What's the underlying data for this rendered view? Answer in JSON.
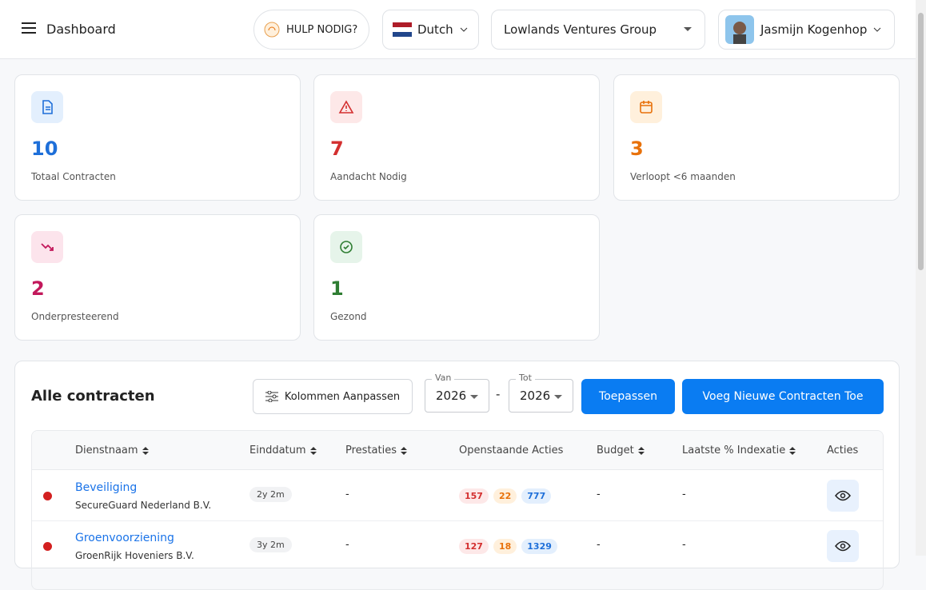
{
  "header": {
    "menu_title": "Dashboard",
    "help": "HULP NODIG?",
    "language": "Dutch",
    "company": "Lowlands Ventures Group",
    "user": "Jasmijn Kogenhop"
  },
  "stats": [
    {
      "value": "10",
      "label": "Totaal Contracten"
    },
    {
      "value": "7",
      "label": "Aandacht Nodig"
    },
    {
      "value": "3",
      "label": "Verloopt <6 maanden"
    },
    {
      "value": "2",
      "label": "Onderpresteerend"
    },
    {
      "value": "1",
      "label": "Gezond"
    }
  ],
  "contracts": {
    "title": "Alle contracten",
    "columns_button": "Kolommen Aanpassen",
    "from_label": "Van",
    "from_value": "2026",
    "separator": "-",
    "to_label": "Tot",
    "to_value": "2026",
    "apply": "Toepassen",
    "add": "Voeg Nieuwe Contracten Toe",
    "columns": [
      "Dienstnaam",
      "Einddatum",
      "Prestaties",
      "Openstaande Acties",
      "Budget",
      "Laatste % Indexatie",
      "Acties"
    ],
    "rows": [
      {
        "name": "Beveiliging",
        "supplier": "SecureGuard Nederland B.V.",
        "end": "2y 2m",
        "performance": "-",
        "actions": [
          "157",
          "22",
          "777"
        ],
        "budget": "-",
        "indexation": "-"
      },
      {
        "name": "Groenvoorziening",
        "supplier": "GroenRijk Hoveniers B.V.",
        "end": "3y 2m",
        "performance": "-",
        "actions": [
          "127",
          "18",
          "1329"
        ],
        "budget": "-",
        "indexation": "-"
      }
    ]
  }
}
